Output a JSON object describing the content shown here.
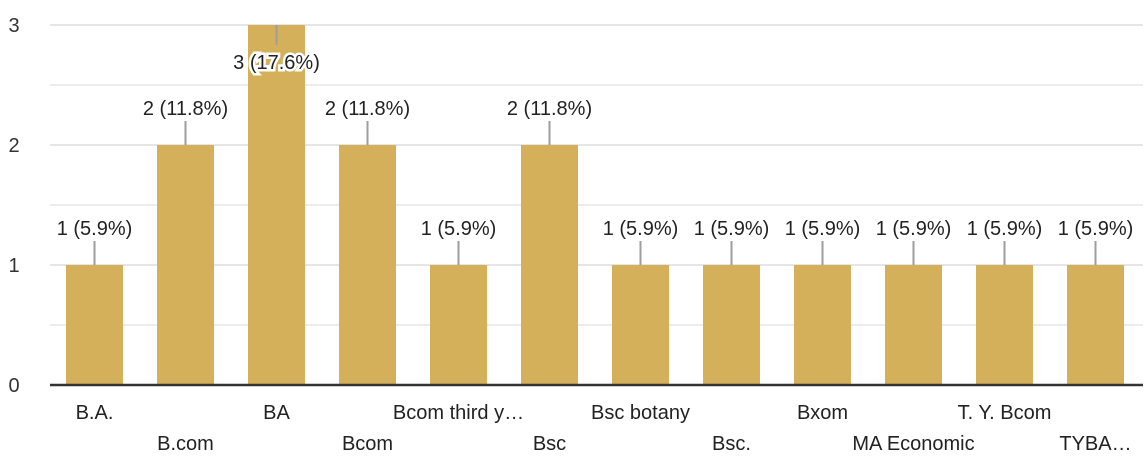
{
  "chart_data": {
    "type": "bar",
    "categories": [
      "B.A.",
      "B.com",
      "BA",
      "Bcom",
      "Bcom third y…",
      "Bsc",
      "Bsc botany",
      "Bsc.",
      "Bxom",
      "MA Economic",
      "T. Y. Bcom",
      "TYBA…"
    ],
    "values": [
      1,
      2,
      3,
      2,
      1,
      2,
      1,
      1,
      1,
      1,
      1,
      1
    ],
    "data_labels": [
      "1 (5.9%)",
      "2 (11.8%)",
      "3 (17.6%)",
      "2 (11.8%)",
      "1 (5.9%)",
      "2 (11.8%)",
      "1 (5.9%)",
      "1 (5.9%)",
      "1 (5.9%)",
      "1 (5.9%)",
      "1 (5.9%)",
      "1 (5.9%)"
    ],
    "y_ticks": [
      "0",
      "1",
      "2",
      "3"
    ],
    "ylim": [
      0,
      3
    ],
    "title": "",
    "xlabel": "",
    "ylabel": "",
    "grid": true,
    "legend": "none",
    "bar_color": "#d4b05a",
    "gridline_color": "#e6e6e6",
    "axis_color": "#333333",
    "leader_color": "#9e9e9e"
  }
}
